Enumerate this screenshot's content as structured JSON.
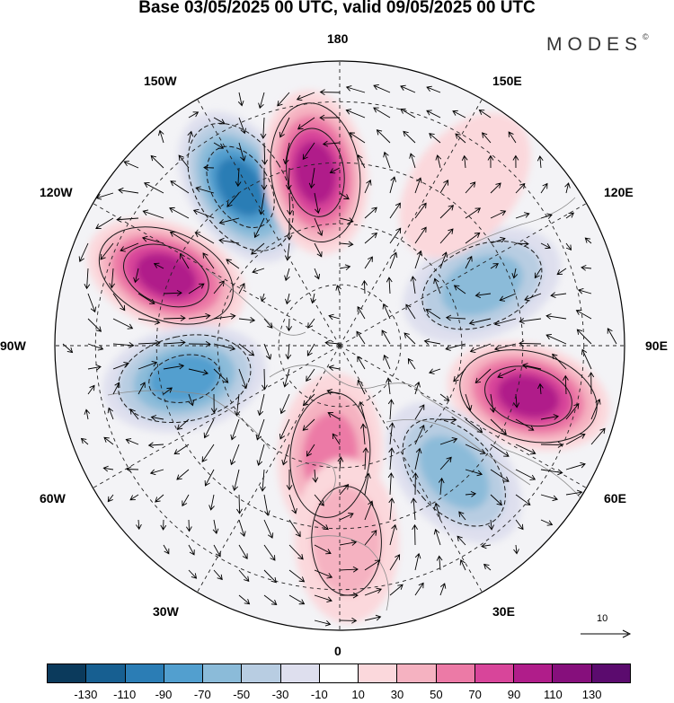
{
  "title": "Base 03/05/2025 00 UTC, valid 09/05/2025 00 UTC",
  "logo": "MODES",
  "logo_mark": "©",
  "longitude_labels": [
    "180",
    "150E",
    "120E",
    "90E",
    "60E",
    "30E",
    "0",
    "30W",
    "60W",
    "90W",
    "120W",
    "150W"
  ],
  "reference_vector": {
    "label": "10",
    "magnitude": 10
  },
  "colorbar": {
    "colors": [
      "#0b3a5c",
      "#175f91",
      "#2b7db5",
      "#529fcf",
      "#8bbbd9",
      "#b8cde2",
      "#dedfee",
      "#ffffff",
      "#fbd8dc",
      "#f5b2c1",
      "#ec7aa6",
      "#d8459a",
      "#b01d8a",
      "#860f7c",
      "#5b0b6e"
    ],
    "tick_labels": [
      "-130",
      "-110",
      "-90",
      "-70",
      "-50",
      "-30",
      "-10",
      "10",
      "30",
      "50",
      "70",
      "90",
      "110",
      "130"
    ]
  },
  "anomaly_centers": [
    {
      "sign": "negative",
      "label": "anomaly-low-150w",
      "lon": -148,
      "lat": 44,
      "peak": -110
    },
    {
      "sign": "positive",
      "label": "anomaly-high-170w",
      "lon": -172,
      "lat": 47,
      "peak": 110
    },
    {
      "sign": "positive",
      "label": "anomaly-high-115w",
      "lon": -112,
      "lat": 44,
      "peak": 110
    },
    {
      "sign": "negative",
      "label": "anomaly-low-95w",
      "lon": -78,
      "lat": 51,
      "peak": -90
    },
    {
      "sign": "negative",
      "label": "anomaly-low-115e",
      "lon": 113,
      "lat": 52,
      "peak": -70
    },
    {
      "sign": "positive",
      "label": "anomaly-high-85e",
      "lon": 75,
      "lat": 42,
      "peak": 110
    },
    {
      "sign": "negative",
      "label": "anomaly-low-45e",
      "lon": 42,
      "lat": 48,
      "peak": -70
    },
    {
      "sign": "positive",
      "label": "anomaly-high-0e",
      "lon": -5,
      "lat": 63,
      "peak": 70
    },
    {
      "sign": "positive",
      "label": "anomaly-high-5e-south",
      "lon": 2,
      "lat": 42,
      "peak": 50
    },
    {
      "sign": "positive",
      "label": "anomaly-high-140e",
      "lon": 142,
      "lat": 40,
      "peak": 30
    }
  ]
}
